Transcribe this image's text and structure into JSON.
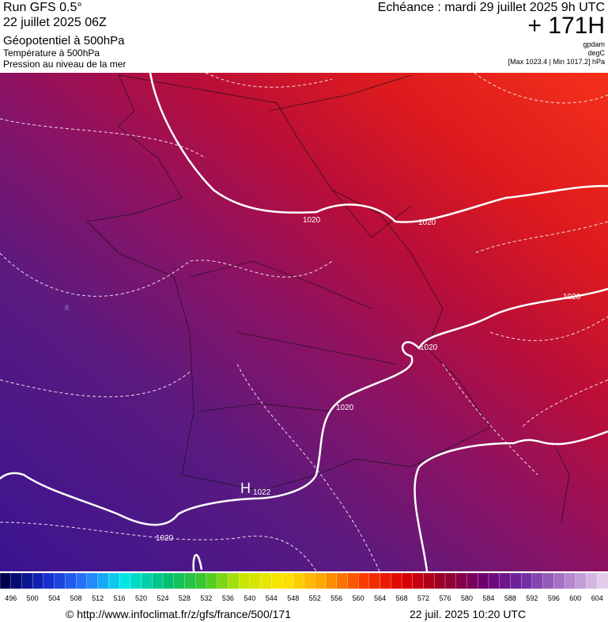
{
  "header": {
    "run": "Run GFS 0.5°",
    "run_date": "22 juillet 2025 06Z",
    "fields": [
      "Géopotentiel à 500hPa",
      "Température à 500hPa",
      "Pression au niveau de la mer"
    ],
    "valid_time": "Echéance : mardi 29 juillet 2025 9h UTC",
    "lead_time": "+ 171H",
    "units": [
      "gpdam",
      "degC",
      "[Max 1023.4 | Min 1017.2] hPa"
    ]
  },
  "map": {
    "contour_labels": [
      "1020",
      "1020",
      "1020",
      "1020",
      "1020",
      "1020"
    ],
    "high": {
      "label": "H",
      "value": "1022"
    },
    "isotherm_label": "8"
  },
  "colorbar": {
    "labels": [
      496,
      500,
      504,
      508,
      512,
      516,
      520,
      524,
      528,
      532,
      536,
      540,
      544,
      548,
      552,
      556,
      560,
      564,
      568,
      572,
      576,
      580,
      584,
      588,
      592,
      596,
      600,
      604
    ]
  },
  "footer": {
    "source": "© http://www.infoclimat.fr/z/gfs/france/500/171",
    "issued": "22 juil. 2025 10:20 UTC"
  }
}
